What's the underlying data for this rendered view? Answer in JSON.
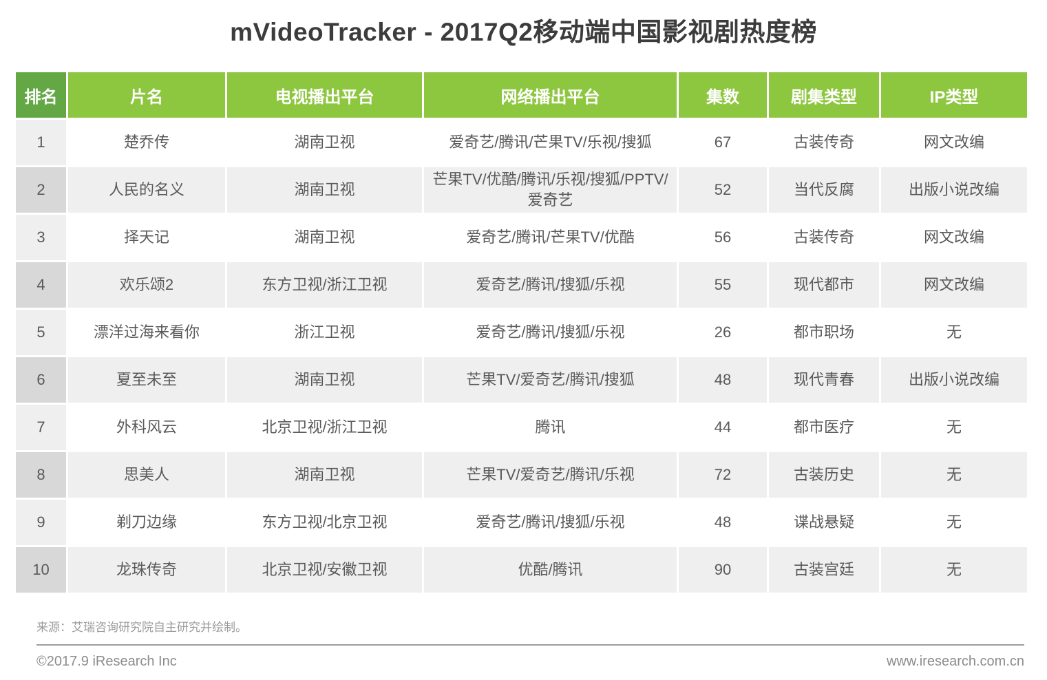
{
  "title": "mVideoTracker - 2017Q2移动端中国影视剧热度榜",
  "chart_data": {
    "type": "table",
    "title": "mVideoTracker - 2017Q2移动端中国影视剧热度榜",
    "columns": [
      "排名",
      "片名",
      "电视播出平台",
      "网络播出平台",
      "集数",
      "剧集类型",
      "IP类型"
    ],
    "rows": [
      [
        "1",
        "楚乔传",
        "湖南卫视",
        "爱奇艺/腾讯/芒果TV/乐视/搜狐",
        "67",
        "古装传奇",
        "网文改编"
      ],
      [
        "2",
        "人民的名义",
        "湖南卫视",
        "芒果TV/优酷/腾讯/乐视/搜狐/PPTV/爱奇艺",
        "52",
        "当代反腐",
        "出版小说改编"
      ],
      [
        "3",
        "择天记",
        "湖南卫视",
        "爱奇艺/腾讯/芒果TV/优酷",
        "56",
        "古装传奇",
        "网文改编"
      ],
      [
        "4",
        "欢乐颂2",
        "东方卫视/浙江卫视",
        "爱奇艺/腾讯/搜狐/乐视",
        "55",
        "现代都市",
        "网文改编"
      ],
      [
        "5",
        "漂洋过海来看你",
        "浙江卫视",
        "爱奇艺/腾讯/搜狐/乐视",
        "26",
        "都市职场",
        "无"
      ],
      [
        "6",
        "夏至未至",
        "湖南卫视",
        "芒果TV/爱奇艺/腾讯/搜狐",
        "48",
        "现代青春",
        "出版小说改编"
      ],
      [
        "7",
        "外科风云",
        "北京卫视/浙江卫视",
        "腾讯",
        "44",
        "都市医疗",
        "无"
      ],
      [
        "8",
        "思美人",
        "湖南卫视",
        "芒果TV/爱奇艺/腾讯/乐视",
        "72",
        "古装历史",
        "无"
      ],
      [
        "9",
        "剃刀边缘",
        "东方卫视/北京卫视",
        "爱奇艺/腾讯/搜狐/乐视",
        "48",
        "谍战悬疑",
        "无"
      ],
      [
        "10",
        "龙珠传奇",
        "北京卫视/安徽卫视",
        "优酷/腾讯",
        "90",
        "古装宫廷",
        "无"
      ]
    ]
  },
  "footer": {
    "source": "来源：艾瑞咨询研究院自主研究并绘制。",
    "copyright": "©2017.9 iResearch Inc",
    "website": "www.iresearch.com.cn"
  },
  "colors": {
    "header_green": "#8dc63f",
    "rank_header_green": "#63a844",
    "row_odd_bg": "#ffffff",
    "row_odd_rank_bg": "#efefef",
    "row_even_bg": "#efefef",
    "row_even_rank_bg": "#d8d8d8",
    "title_text": "#3c3c3c",
    "cell_text": "#595959",
    "footer_text": "#8c8c8c"
  }
}
